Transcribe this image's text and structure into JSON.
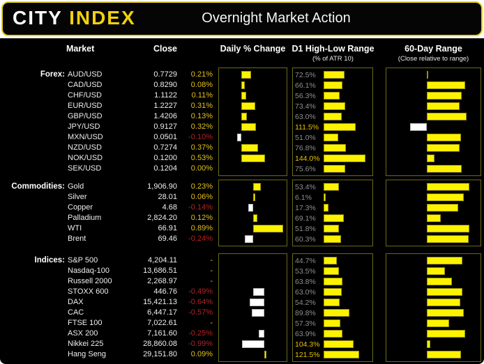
{
  "header": {
    "logo_city": "CITY",
    "logo_index": "INDEX",
    "title": "Overnight Market Action"
  },
  "colors": {
    "accent_yellow": "#f2d10e",
    "positive_text": "#e5c21b",
    "negative_text": "#b32424",
    "bar_positive": "#fdf300",
    "bar_negative": "#ffffff",
    "atr_label_gray": "#8f8f8f",
    "atr_label_highlight": "#e8c400",
    "panel_border": "#6b6a18",
    "background": "#000000"
  },
  "chart_data": {
    "type": "table",
    "title": "Overnight Market Action",
    "columns": {
      "market": "Market",
      "close": "Close",
      "daily": "Daily % Change",
      "atr": "D1 High-Low Range",
      "atr_sub": "(% of ATR 10)",
      "range60": "60-Day Range",
      "range60_sub": "(Close relative to range)"
    },
    "legend_note": "Daily % bars: yellow = positive, white = negative. ATR labels above 100% highlighted yellow. 60-day bars drawn from mid-range baseline.",
    "atr_axis": {
      "min": 0,
      "max": 166
    },
    "sections": [
      {
        "label": "Forex:",
        "daily_axis": {
          "min": -0.5,
          "max": 1.0
        },
        "rows": [
          {
            "market": "AUD/USD",
            "close": "0.7729",
            "daily": 0.21,
            "daily_label": "0.21%",
            "atr": 72.5,
            "atr_label": "72.5%",
            "r60": 0.03
          },
          {
            "market": "CAD/USD",
            "close": "0.8290",
            "daily": 0.08,
            "daily_label": "0.08%",
            "atr": 66.1,
            "atr_label": "66.1%",
            "r60": 0.73
          },
          {
            "market": "CHF/USD",
            "close": "1.1122",
            "daily": 0.11,
            "daily_label": "0.11%",
            "atr": 56.3,
            "atr_label": "56.3%",
            "r60": 0.67
          },
          {
            "market": "EUR/USD",
            "close": "1.2227",
            "daily": 0.31,
            "daily_label": "0.31%",
            "atr": 73.4,
            "atr_label": "73.4%",
            "r60": 0.63
          },
          {
            "market": "GBP/USD",
            "close": "1.4206",
            "daily": 0.13,
            "daily_label": "0.13%",
            "atr": 63.0,
            "atr_label": "63.0%",
            "r60": 0.76
          },
          {
            "market": "JPY/USD",
            "close": "0.9127",
            "daily": 0.32,
            "daily_label": "0.32%",
            "atr": 111.5,
            "atr_label": "111.5%",
            "r60": -0.44
          },
          {
            "market": "MXN/USD",
            "close": "0.0501",
            "daily": -0.1,
            "daily_label": "-0.10%",
            "atr": 51.0,
            "atr_label": "51.0%",
            "r60": 0.65
          },
          {
            "market": "NZD/USD",
            "close": "0.7274",
            "daily": 0.37,
            "daily_label": "0.37%",
            "atr": 76.8,
            "atr_label": "76.8%",
            "r60": 0.62
          },
          {
            "market": "NOK/USD",
            "close": "0.1200",
            "daily": 0.53,
            "daily_label": "0.53%",
            "atr": 144.0,
            "atr_label": "144.0%",
            "r60": 0.15
          },
          {
            "market": "SEK/USD",
            "close": "0.1204",
            "daily": 0.0,
            "daily_label": "0.00%",
            "atr": 75.6,
            "atr_label": "75.6%",
            "r60": 0.67
          }
        ]
      },
      {
        "label": "Commodities:",
        "daily_axis": {
          "min": -1.0,
          "max": 1.0
        },
        "rows": [
          {
            "market": "Gold",
            "close": "1,906.90",
            "daily": 0.23,
            "daily_label": "0.23%",
            "atr": 53.4,
            "atr_label": "53.4%",
            "r60": 0.81
          },
          {
            "market": "Silver",
            "close": "28.01",
            "daily": 0.06,
            "daily_label": "0.06%",
            "atr": 6.1,
            "atr_label": "6.1%",
            "r60": 0.7
          },
          {
            "market": "Copper",
            "close": "4.68",
            "daily": -0.14,
            "daily_label": "-0.14%",
            "atr": 17.3,
            "atr_label": "17.3%",
            "r60": 0.6
          },
          {
            "market": "Palladium",
            "close": "2,824.20",
            "daily": 0.12,
            "daily_label": "0.12%",
            "atr": 69.1,
            "atr_label": "69.1%",
            "r60": 0.26
          },
          {
            "market": "WTI",
            "close": "66.91",
            "daily": 0.89,
            "daily_label": "0.89%",
            "atr": 51.8,
            "atr_label": "51.8%",
            "r60": 0.82
          },
          {
            "market": "Brent",
            "close": "69.46",
            "daily": -0.24,
            "daily_label": "-0.24%",
            "atr": 60.3,
            "atr_label": "60.3%",
            "r60": 0.8
          }
        ]
      },
      {
        "label": "Indices:",
        "daily_axis": {
          "min": -2.0,
          "max": 1.0
        },
        "rows": [
          {
            "market": "S&P 500",
            "close": "4,204.11",
            "daily": null,
            "daily_label": "-",
            "atr": 44.7,
            "atr_label": "44.7%",
            "r60": 0.68
          },
          {
            "market": "Nasdaq-100",
            "close": "13,686.51",
            "daily": null,
            "daily_label": "-",
            "atr": 53.5,
            "atr_label": "53.5%",
            "r60": 0.34
          },
          {
            "market": "Russell 2000",
            "close": "2,268.97",
            "daily": null,
            "daily_label": "-",
            "atr": 63.8,
            "atr_label": "63.8%",
            "r60": 0.48
          },
          {
            "market": "STOXX 600",
            "close": "446.76",
            "daily": -0.49,
            "daily_label": "-0.49%",
            "atr": 63.0,
            "atr_label": "63.0%",
            "r60": 0.68
          },
          {
            "market": "DAX",
            "close": "15,421.13",
            "daily": -0.64,
            "daily_label": "-0.64%",
            "atr": 54.2,
            "atr_label": "54.2%",
            "r60": 0.64
          },
          {
            "market": "CAC",
            "close": "6,447.17",
            "daily": -0.57,
            "daily_label": "-0.57%",
            "atr": 89.8,
            "atr_label": "89.8%",
            "r60": 0.7
          },
          {
            "market": "FTSE 100",
            "close": "7,022.61",
            "daily": null,
            "daily_label": "-",
            "atr": 57.3,
            "atr_label": "57.3%",
            "r60": 0.43
          },
          {
            "market": "ASX 200",
            "close": "7,161.60",
            "daily": -0.25,
            "daily_label": "-0.25%",
            "atr": 63.9,
            "atr_label": "63.9%",
            "r60": 0.73
          },
          {
            "market": "Nikkei 225",
            "close": "28,860.08",
            "daily": -0.99,
            "daily_label": "-0.99%",
            "atr": 104.3,
            "atr_label": "104.3%",
            "r60": 0.06
          },
          {
            "market": "Hang Seng",
            "close": "29,151.80",
            "daily": 0.09,
            "daily_label": "0.09%",
            "atr": 121.5,
            "atr_label": "121.5%",
            "r60": 0.65
          }
        ]
      }
    ]
  }
}
